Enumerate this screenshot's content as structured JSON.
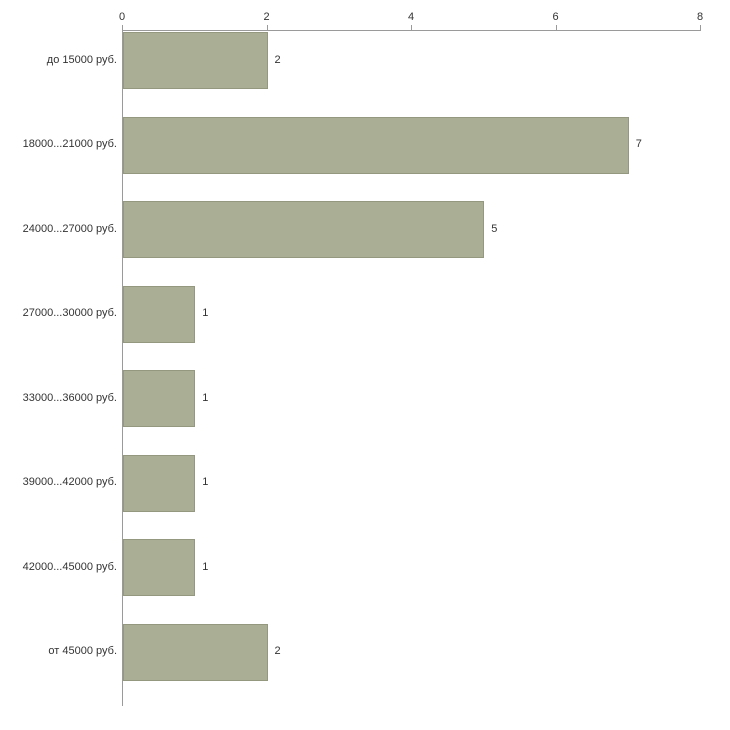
{
  "chart_data": {
    "type": "bar",
    "orientation": "horizontal",
    "title": "",
    "xlabel": "",
    "ylabel": "",
    "categories": [
      "до 15000 руб.",
      "18000...21000 руб.",
      "24000...27000 руб.",
      "27000...30000 руб.",
      "33000...36000 руб.",
      "39000...42000 руб.",
      "42000...45000 руб.",
      "от 45000 руб."
    ],
    "values": [
      2,
      7,
      5,
      1,
      1,
      1,
      1,
      2
    ],
    "xlim": [
      0,
      8
    ],
    "x_ticks": [
      0,
      2,
      4,
      6,
      8
    ],
    "axis_position": "top",
    "grid": false,
    "legend": false,
    "value_labels": true,
    "colors": {
      "bar_fill": "#a9ae94",
      "bar_border": "#93987e",
      "axis": "#9a9a9a",
      "text": "#333333",
      "background": "#ffffff"
    }
  }
}
